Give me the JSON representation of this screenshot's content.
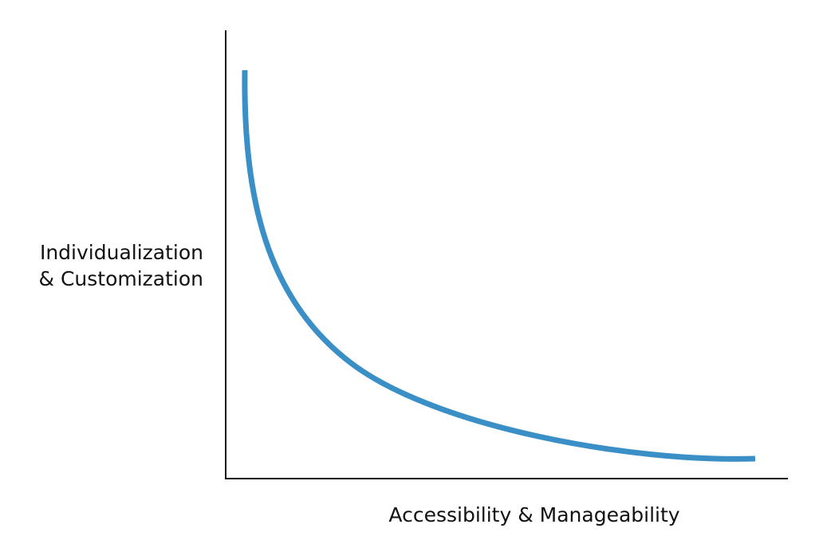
{
  "axes": {
    "y_label": [
      "Individualization",
      "& Customization"
    ],
    "x_label": "Accessibility & Manageability"
  }
}
